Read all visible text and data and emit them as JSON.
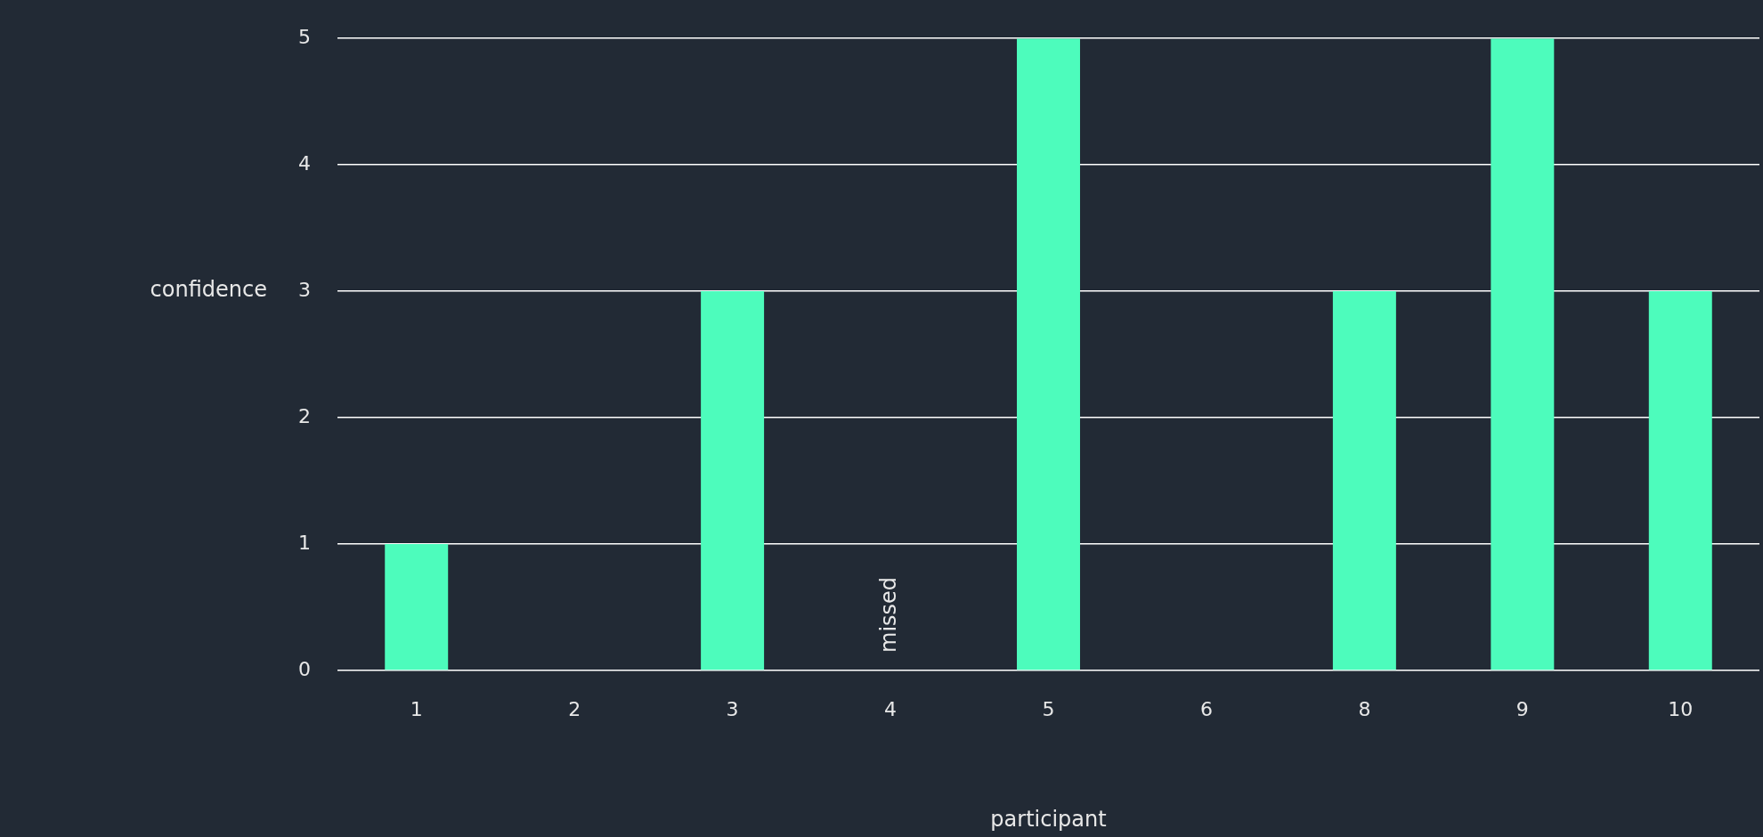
{
  "chart_data": {
    "type": "bar",
    "xlabel": "participant",
    "ylabel": "confidence",
    "categories": [
      "1",
      "2",
      "3",
      "4",
      "5",
      "6",
      "8",
      "9",
      "10"
    ],
    "values": [
      1,
      0,
      3,
      0,
      5,
      0,
      3,
      5,
      3
    ],
    "color": "#4dfcbc",
    "ylim": [
      0,
      5
    ],
    "yticks": [
      0,
      1,
      2,
      3,
      4,
      5
    ],
    "grid": "y",
    "legend": false,
    "annotations": [
      {
        "text": "missed",
        "x": "4",
        "y": 0
      }
    ]
  }
}
